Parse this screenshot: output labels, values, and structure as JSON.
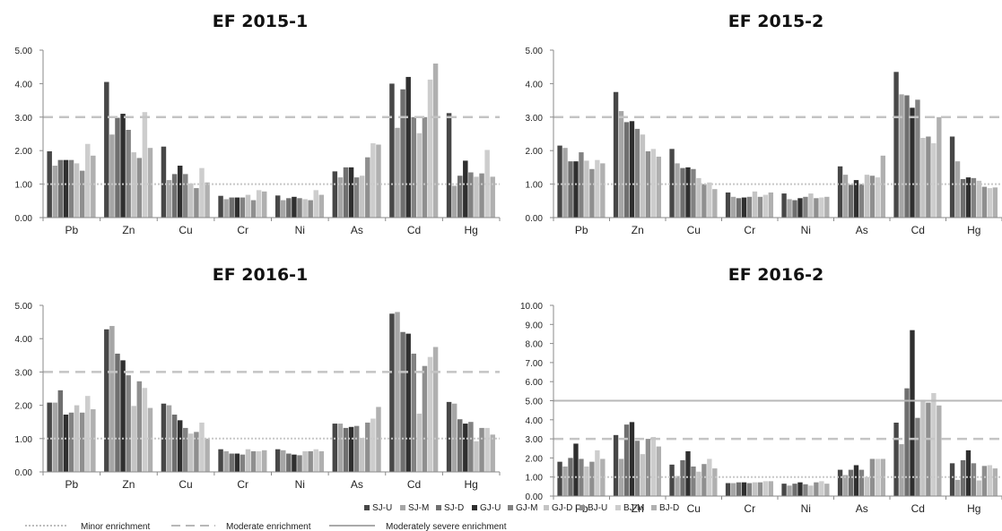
{
  "legend": {
    "series": [
      "SJ-U",
      "SJ-M",
      "SJ-D",
      "GJ-U",
      "GJ-M",
      "GJ-D",
      "BJ-U",
      "BJ-M",
      "BJ-D"
    ],
    "lines": [
      "Minor enrichment",
      "Moderate enrichment",
      "Moderately severe enrichment"
    ]
  },
  "series_colors": [
    "#474747",
    "#a6a6a6",
    "#6f6f6f",
    "#2f2f2f",
    "#828282",
    "#c4c4c4",
    "#8f8f8f",
    "#cdcdcd",
    "#b0b0b0"
  ],
  "chart_data": [
    {
      "type": "bar",
      "title": "EF 2015-1",
      "categories": [
        "Pb",
        "Zn",
        "Cu",
        "Cr",
        "Ni",
        "As",
        "Cd",
        "Hg"
      ],
      "ylim": [
        0,
        5
      ],
      "yticks": [
        "0.00",
        "1.00",
        "2.00",
        "3.00",
        "4.00",
        "5.00"
      ],
      "reference_lines": [
        1,
        3
      ],
      "series": [
        {
          "name": "SJ-U",
          "values": [
            1.98,
            4.05,
            2.12,
            0.65,
            0.66,
            1.38,
            4.0,
            3.12
          ]
        },
        {
          "name": "SJ-M",
          "values": [
            1.55,
            2.48,
            1.12,
            0.55,
            0.52,
            1.2,
            2.68,
            0.95
          ]
        },
        {
          "name": "SJ-D",
          "values": [
            1.72,
            2.98,
            1.3,
            0.6,
            0.58,
            1.5,
            3.83,
            1.25
          ]
        },
        {
          "name": "GJ-U",
          "values": [
            1.72,
            3.1,
            1.55,
            0.6,
            0.62,
            1.5,
            4.2,
            1.7
          ]
        },
        {
          "name": "GJ-M",
          "values": [
            1.72,
            2.62,
            1.3,
            0.6,
            0.58,
            1.2,
            3.0,
            1.35
          ]
        },
        {
          "name": "GJ-D",
          "values": [
            1.62,
            1.95,
            1.02,
            0.68,
            0.55,
            1.25,
            2.52,
            1.22
          ]
        },
        {
          "name": "BJ-U",
          "values": [
            1.4,
            1.78,
            0.88,
            0.52,
            0.52,
            1.8,
            3.0,
            1.32
          ]
        },
        {
          "name": "BJ-M",
          "values": [
            2.2,
            3.15,
            1.48,
            0.82,
            0.82,
            2.22,
            4.12,
            2.02
          ]
        },
        {
          "name": "BJ-D",
          "values": [
            1.85,
            2.08,
            1.05,
            0.78,
            0.68,
            2.18,
            4.6,
            1.22
          ]
        }
      ]
    },
    {
      "type": "bar",
      "title": "EF 2015-2",
      "categories": [
        "Pb",
        "Zn",
        "Cu",
        "Cr",
        "Ni",
        "As",
        "Cd",
        "Hg"
      ],
      "ylim": [
        0,
        5
      ],
      "yticks": [
        "0.00",
        "1.00",
        "2.00",
        "3.00",
        "4.00",
        "5.00"
      ],
      "reference_lines": [
        1,
        3
      ],
      "series": [
        {
          "name": "SJ-U",
          "values": [
            2.15,
            3.75,
            2.05,
            0.75,
            0.72,
            1.53,
            4.35,
            2.42
          ]
        },
        {
          "name": "SJ-M",
          "values": [
            2.08,
            3.18,
            1.62,
            0.62,
            0.55,
            1.28,
            3.68,
            1.68
          ]
        },
        {
          "name": "SJ-D",
          "values": [
            1.68,
            2.85,
            1.48,
            0.58,
            0.52,
            0.98,
            3.65,
            1.15
          ]
        },
        {
          "name": "GJ-U",
          "values": [
            1.68,
            2.88,
            1.5,
            0.6,
            0.58,
            1.12,
            3.28,
            1.2
          ]
        },
        {
          "name": "GJ-M",
          "values": [
            1.95,
            2.65,
            1.45,
            0.62,
            0.62,
            1.0,
            3.52,
            1.18
          ]
        },
        {
          "name": "GJ-D",
          "values": [
            1.7,
            2.48,
            1.18,
            0.78,
            0.72,
            1.28,
            2.38,
            1.1
          ]
        },
        {
          "name": "BJ-U",
          "values": [
            1.45,
            1.98,
            1.0,
            0.62,
            0.58,
            1.25,
            2.42,
            0.92
          ]
        },
        {
          "name": "BJ-M",
          "values": [
            1.72,
            2.05,
            1.05,
            0.68,
            0.6,
            1.2,
            2.22,
            0.88
          ]
        },
        {
          "name": "BJ-D",
          "values": [
            1.62,
            1.82,
            0.85,
            0.75,
            0.62,
            1.85,
            3.0,
            0.9
          ]
        }
      ]
    },
    {
      "type": "bar",
      "title": "EF 2016-1",
      "categories": [
        "Pb",
        "Zn",
        "Cu",
        "Cr",
        "Ni",
        "As",
        "Cd",
        "Hg"
      ],
      "ylim": [
        0,
        5
      ],
      "yticks": [
        "0.00",
        "1.00",
        "2.00",
        "3.00",
        "4.00",
        "5.00"
      ],
      "reference_lines": [
        1,
        3
      ],
      "series": [
        {
          "name": "SJ-U",
          "values": [
            2.08,
            4.28,
            2.05,
            0.68,
            0.68,
            1.45,
            4.75,
            2.1
          ]
        },
        {
          "name": "SJ-M",
          "values": [
            2.08,
            4.38,
            2.0,
            0.62,
            0.65,
            1.45,
            4.8,
            2.05
          ]
        },
        {
          "name": "SJ-D",
          "values": [
            2.45,
            3.55,
            1.72,
            0.55,
            0.55,
            1.32,
            4.2,
            1.58
          ]
        },
        {
          "name": "GJ-U",
          "values": [
            1.72,
            3.35,
            1.55,
            0.55,
            0.52,
            1.35,
            4.15,
            1.45
          ]
        },
        {
          "name": "GJ-M",
          "values": [
            1.78,
            2.9,
            1.32,
            0.52,
            0.5,
            1.38,
            3.55,
            1.5
          ]
        },
        {
          "name": "GJ-D",
          "values": [
            2.0,
            1.98,
            1.15,
            0.68,
            0.62,
            1.02,
            1.75,
            0.92
          ]
        },
        {
          "name": "BJ-U",
          "values": [
            1.78,
            2.72,
            1.2,
            0.62,
            0.62,
            1.48,
            3.18,
            1.32
          ]
        },
        {
          "name": "BJ-M",
          "values": [
            2.28,
            2.52,
            1.48,
            0.62,
            0.68,
            1.6,
            3.45,
            1.32
          ]
        },
        {
          "name": "BJ-D",
          "values": [
            1.88,
            1.92,
            1.0,
            0.65,
            0.62,
            1.95,
            3.75,
            1.12
          ]
        }
      ]
    },
    {
      "type": "bar",
      "title": "EF 2016-2",
      "categories": [
        "Pb",
        "Zn",
        "Cu",
        "Cr",
        "Ni",
        "As",
        "Cd",
        "Hg"
      ],
      "ylim": [
        0,
        10
      ],
      "yticks": [
        "0.00",
        "1.00",
        "2.00",
        "3.00",
        "4.00",
        "5.00",
        "6.00",
        "7.00",
        "8.00",
        "9.00",
        "10.00"
      ],
      "reference_lines": [
        1,
        3,
        5
      ],
      "series": [
        {
          "name": "SJ-U",
          "values": [
            1.8,
            3.2,
            1.65,
            0.68,
            0.65,
            1.38,
            3.85,
            1.72
          ]
        },
        {
          "name": "SJ-M",
          "values": [
            1.55,
            1.95,
            1.05,
            0.68,
            0.55,
            1.1,
            2.72,
            0.85
          ]
        },
        {
          "name": "SJ-D",
          "values": [
            2.0,
            3.75,
            1.88,
            0.72,
            0.65,
            1.38,
            5.65,
            1.88
          ]
        },
        {
          "name": "GJ-U",
          "values": [
            2.75,
            3.88,
            2.35,
            0.72,
            0.72,
            1.62,
            8.7,
            2.4
          ]
        },
        {
          "name": "GJ-M",
          "values": [
            1.95,
            2.9,
            1.55,
            0.68,
            0.62,
            1.38,
            4.1,
            1.72
          ]
        },
        {
          "name": "GJ-D",
          "values": [
            1.55,
            2.2,
            1.28,
            0.72,
            0.55,
            1.0,
            5.05,
            0.82
          ]
        },
        {
          "name": "BJ-U",
          "values": [
            1.8,
            3.0,
            1.68,
            0.72,
            0.72,
            1.95,
            4.9,
            1.58
          ]
        },
        {
          "name": "BJ-M",
          "values": [
            2.4,
            3.1,
            1.95,
            0.78,
            0.78,
            1.95,
            5.4,
            1.62
          ]
        },
        {
          "name": "BJ-D",
          "values": [
            1.95,
            2.6,
            1.45,
            0.78,
            0.65,
            1.95,
            4.75,
            1.45
          ]
        }
      ]
    }
  ]
}
